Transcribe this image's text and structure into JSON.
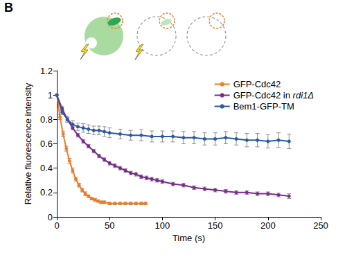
{
  "panel_label": "B",
  "chart_data": {
    "type": "line",
    "xlabel": "Time (s)",
    "ylabel": "Relative fluorescence intensity",
    "xlim": [
      0,
      250
    ],
    "ylim": [
      0,
      1.2
    ],
    "xticks": [
      0,
      50,
      100,
      150,
      200,
      250
    ],
    "yticks": [
      0,
      0.2,
      0.4,
      0.6,
      0.8,
      1,
      1.2
    ],
    "grid": false,
    "legend": "top-right",
    "series": [
      {
        "name": "GFP-Cdc42",
        "color": "#f47a20",
        "marker": "circle",
        "line_style": "solid",
        "x": [
          0,
          3,
          6,
          9,
          12,
          15,
          18,
          21,
          24,
          27,
          30,
          33,
          36,
          39,
          42,
          45,
          50,
          55,
          60,
          65,
          70,
          75,
          80,
          84
        ],
        "values": [
          1,
          0.82,
          0.68,
          0.56,
          0.46,
          0.38,
          0.31,
          0.26,
          0.22,
          0.19,
          0.17,
          0.15,
          0.14,
          0.13,
          0.12,
          0.12,
          0.11,
          0.11,
          0.11,
          0.11,
          0.11,
          0.11,
          0.11,
          0.11
        ],
        "errors": [
          0,
          0.02,
          0.02,
          0.02,
          0.02,
          0.02,
          0.015,
          0.015,
          0.015,
          0.015,
          0.01,
          0.01,
          0.01,
          0.01,
          0.01,
          0.01,
          0.01,
          0.01,
          0.01,
          0.01,
          0.01,
          0.01,
          0.01,
          0.01
        ]
      },
      {
        "name": "GFP-Cdc42 in rdi1Δ",
        "color": "#7b2a8c",
        "marker": "circle",
        "line_style": "solid",
        "x": [
          0,
          5,
          10,
          15,
          20,
          25,
          30,
          35,
          40,
          45,
          50,
          55,
          60,
          65,
          70,
          75,
          80,
          85,
          90,
          95,
          100,
          110,
          120,
          130,
          140,
          150,
          160,
          170,
          180,
          190,
          200,
          210,
          220
        ],
        "values": [
          1,
          0.89,
          0.8,
          0.73,
          0.67,
          0.62,
          0.58,
          0.54,
          0.5,
          0.47,
          0.44,
          0.42,
          0.4,
          0.38,
          0.36,
          0.35,
          0.33,
          0.32,
          0.31,
          0.3,
          0.29,
          0.27,
          0.26,
          0.24,
          0.23,
          0.22,
          0.21,
          0.2,
          0.2,
          0.19,
          0.19,
          0.18,
          0.17
        ],
        "errors": [
          0,
          0.015,
          0.015,
          0.015,
          0.015,
          0.015,
          0.015,
          0.015,
          0.015,
          0.015,
          0.015,
          0.015,
          0.015,
          0.015,
          0.015,
          0.015,
          0.015,
          0.015,
          0.015,
          0.015,
          0.015,
          0.015,
          0.015,
          0.015,
          0.015,
          0.015,
          0.015,
          0.015,
          0.015,
          0.015,
          0.015,
          0.015,
          0.02
        ]
      },
      {
        "name": "Bem1-GFP-TM",
        "color": "#2b5aa6",
        "marker": "circle",
        "line_style": "solid",
        "x": [
          0,
          5,
          10,
          15,
          20,
          25,
          30,
          35,
          40,
          45,
          50,
          60,
          70,
          80,
          90,
          100,
          110,
          120,
          130,
          140,
          150,
          160,
          170,
          180,
          190,
          200,
          210,
          220
        ],
        "values": [
          1,
          0.86,
          0.8,
          0.76,
          0.74,
          0.73,
          0.72,
          0.71,
          0.71,
          0.7,
          0.69,
          0.68,
          0.67,
          0.67,
          0.66,
          0.66,
          0.66,
          0.65,
          0.65,
          0.64,
          0.64,
          0.65,
          0.64,
          0.63,
          0.63,
          0.62,
          0.63,
          0.62
        ],
        "errors": [
          0,
          0.02,
          0.025,
          0.03,
          0.03,
          0.035,
          0.035,
          0.035,
          0.035,
          0.04,
          0.04,
          0.04,
          0.04,
          0.045,
          0.045,
          0.045,
          0.045,
          0.05,
          0.05,
          0.05,
          0.05,
          0.05,
          0.05,
          0.055,
          0.055,
          0.055,
          0.06,
          0.06
        ]
      }
    ]
  }
}
